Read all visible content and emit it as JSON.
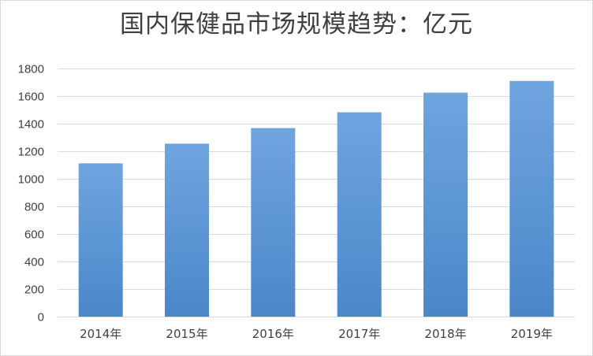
{
  "chart_title": "国内保健品市场规模趋势：亿元",
  "colors": {
    "bar_top": "#6fa5df",
    "bar_bottom": "#4a87c9",
    "gridline": "#d9d9d9",
    "axis_text": "#404040",
    "title_text": "#404040"
  },
  "chart_data": {
    "type": "bar",
    "title": "国内保健品市场规模趋势：亿元",
    "categories": [
      "2014年",
      "2015年",
      "2016年",
      "2017年",
      "2018年",
      "2019年"
    ],
    "values": [
      1112,
      1255,
      1368,
      1482,
      1625,
      1710
    ],
    "xlabel": "",
    "ylabel": "",
    "ylim": [
      0,
      1800
    ],
    "yticks": [
      0,
      200,
      400,
      600,
      800,
      1000,
      1200,
      1400,
      1600,
      1800
    ],
    "grid": true,
    "legend": "none"
  }
}
